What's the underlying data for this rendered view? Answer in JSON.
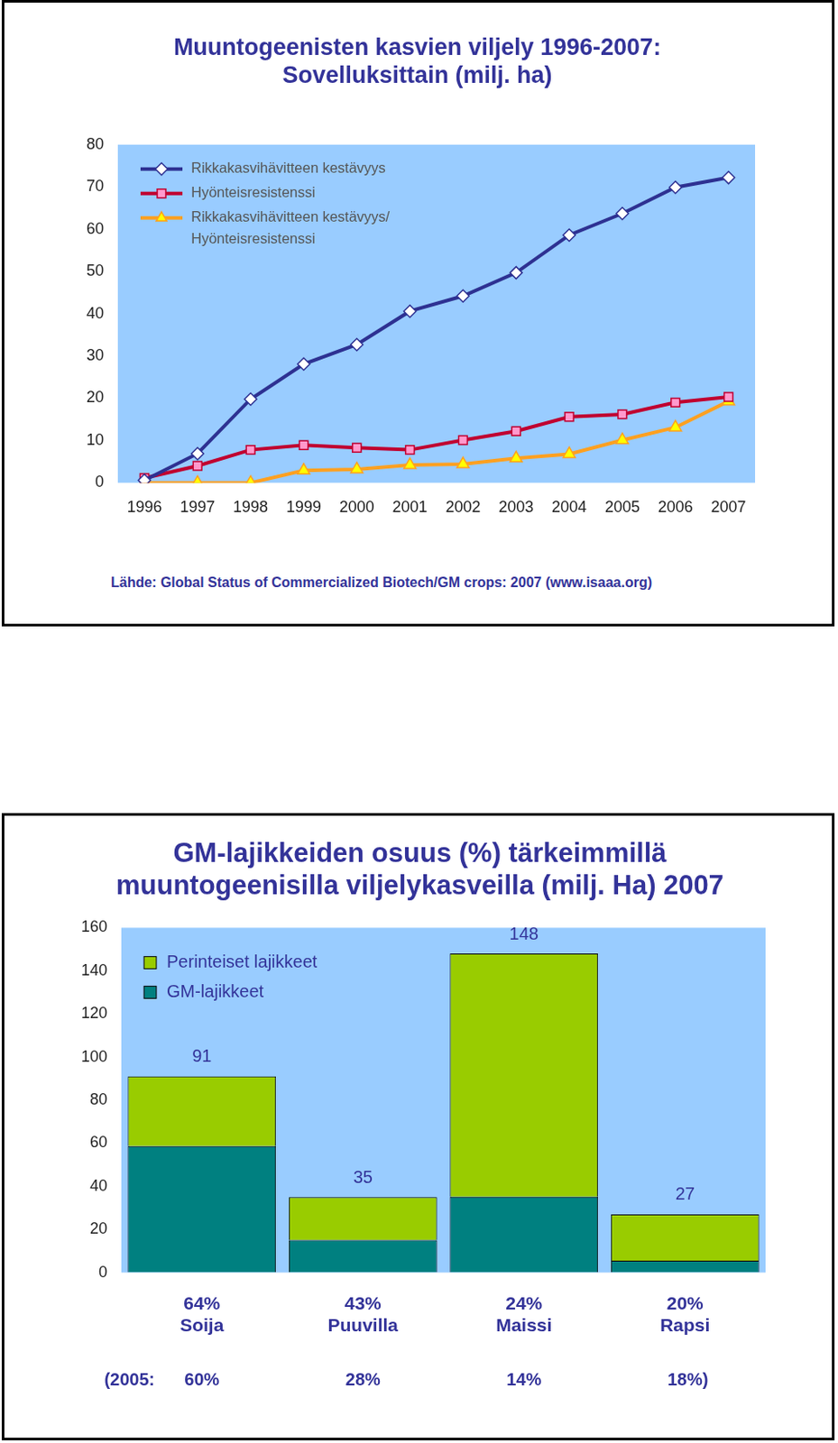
{
  "chart_data": [
    {
      "type": "line",
      "title": [
        "Muuntogeenisten kasvien viljely 1996-2007:",
        "Sovelluksittain (milj. ha)"
      ],
      "categories": [
        "1996",
        "1997",
        "1998",
        "1999",
        "2000",
        "2001",
        "2002",
        "2003",
        "2004",
        "2005",
        "2006",
        "2007"
      ],
      "series": [
        {
          "name": "Rikkakasvihävitteen kestävyys",
          "color": "#2e3192",
          "marker": "diamond",
          "values": [
            0.6,
            6.9,
            19.8,
            28.1,
            32.7,
            40.6,
            44.2,
            49.7,
            58.6,
            63.7,
            69.9,
            72.2
          ]
        },
        {
          "name": "Hyönteisresistenssi",
          "color": "#c00030",
          "marker": "square",
          "values": [
            1.1,
            4.0,
            7.8,
            8.9,
            8.3,
            7.8,
            10.1,
            12.2,
            15.6,
            16.2,
            19.0,
            20.3
          ]
        },
        {
          "name": "Rikkakasvihävitteen kestävyys/ Hyönteisresistenssi",
          "color": "#ffa020",
          "marker": "triangle",
          "values": [
            0,
            0,
            0,
            2.9,
            3.2,
            4.2,
            4.4,
            5.8,
            6.8,
            10.1,
            13.1,
            19.3
          ]
        }
      ],
      "ylim": [
        0,
        80
      ],
      "yticks": [
        0,
        10,
        20,
        30,
        40,
        50,
        60,
        70,
        80
      ],
      "grid": false,
      "legend": "top-left",
      "source": "Lähde: Global Status of Commercialized Biotech/GM crops: 2007 (www.isaaa.org)"
    },
    {
      "type": "bar",
      "title": [
        "GM-lajikkeiden osuus (%) tärkeimmillä",
        "muuntogeenisilla viljelykasveilla (milj. Ha) 2007"
      ],
      "categories": [
        "Soija",
        "Puuvilla",
        "Maissi",
        "Rapsi"
      ],
      "series": [
        {
          "name": "GM-lajikkeet",
          "color": "#008080",
          "values": [
            58.6,
            15.0,
            35.2,
            5.5
          ]
        },
        {
          "name": "Perinteiset lajikkeet",
          "color": "#99cc00",
          "values": [
            32.4,
            20.0,
            112.8,
            21.5
          ]
        }
      ],
      "stacked": true,
      "totals": [
        91,
        35,
        148,
        27
      ],
      "gm_share_2007": [
        {
          "value": 64,
          "label": "64%"
        },
        {
          "value": 43,
          "label": "43%"
        },
        {
          "value": 24,
          "label": "24%"
        },
        {
          "value": 20,
          "label": "20%"
        }
      ],
      "gm_share_2005": {
        "prefix": "(2005:",
        "suffix": ")",
        "shares": [
          {
            "value": 60,
            "label": "60%"
          },
          {
            "value": 28,
            "label": "28%"
          },
          {
            "value": 14,
            "label": "14%"
          },
          {
            "value": 18,
            "label": "18%"
          }
        ]
      },
      "ylim": [
        0,
        160
      ],
      "yticks": [
        0,
        20,
        40,
        60,
        80,
        100,
        120,
        140,
        160
      ],
      "grid": false,
      "legend": "top-left"
    }
  ]
}
